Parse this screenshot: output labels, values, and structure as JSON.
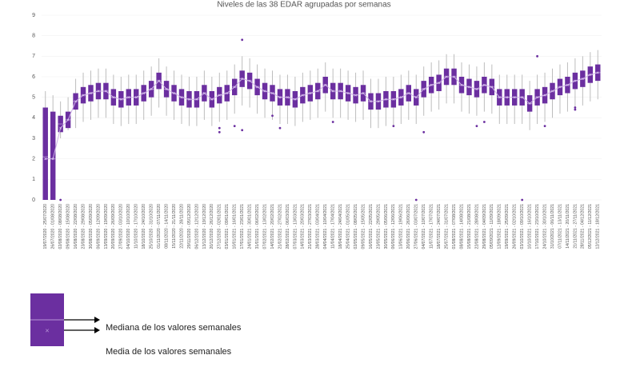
{
  "chart_data": {
    "type": "box",
    "title": "Niveles de las 38 EDAR agrupadas por semanas",
    "categories": [
      "19/07/2020 - 25/07/2020",
      "26/07/2020 - 01/08/2020",
      "02/08/2020 - 08/08/2020",
      "09/08/2020 - 15/08/2020",
      "16/08/2020 - 22/08/2020",
      "23/08/2020 - 29/08/2020",
      "30/08/2020 - 05/09/2020",
      "06/09/2020 - 12/09/2020",
      "13/09/2020 - 19/09/2020",
      "20/09/2020 - 26/09/2020",
      "27/09/2020 - 03/10/2020",
      "04/10/2020 - 10/10/2020",
      "11/10/2020 - 17/10/2020",
      "18/10/2020 - 24/10/2020",
      "25/10/2020 - 31/10/2020",
      "01/11/2020 - 07/11/2020",
      "08/11/2020 - 14/11/2020",
      "15/11/2020 - 21/11/2020",
      "22/11/2020 - 28/11/2020",
      "29/11/2020 - 05/12/2020",
      "06/12/2020 - 12/12/2020",
      "13/12/2020 - 19/12/2020",
      "20/12/2020 - 26/12/2020",
      "27/12/2020 - 02/01/2021",
      "03/01/2021 - 09/01/2021",
      "10/01/2021 - 16/01/2021",
      "17/01/2021 - 23/01/2021",
      "24/01/2021 - 30/01/2021",
      "31/01/2021 - 06/02/2021",
      "07/02/2021 - 13/02/2021",
      "14/02/2021 - 20/02/2021",
      "21/02/2021 - 27/02/2021",
      "28/02/2021 - 06/03/2021",
      "07/03/2021 - 13/03/2021",
      "14/03/2021 - 20/03/2021",
      "21/03/2021 - 27/03/2021",
      "28/03/2021 - 03/04/2021",
      "04/04/2021 - 10/04/2021",
      "11/04/2021 - 17/04/2021",
      "18/04/2021 - 24/04/2021",
      "25/04/2021 - 01/05/2021",
      "02/05/2021 - 08/05/2021",
      "09/05/2021 - 15/05/2021",
      "16/05/2021 - 22/05/2021",
      "23/05/2021 - 29/05/2021",
      "30/05/2021 - 05/06/2021",
      "06/06/2021 - 12/06/2021",
      "13/06/2021 - 19/06/2021",
      "20/06/2021 - 26/06/2021",
      "27/06/2021 - 03/07/2021",
      "04/07/2021 - 10/07/2021",
      "11/07/2021 - 17/07/2021",
      "18/07/2021 - 24/07/2021",
      "25/07/2021 - 31/07/2021",
      "01/08/2021 - 07/08/2021",
      "08/08/2021 - 14/08/2021",
      "15/08/2021 - 21/08/2021",
      "22/08/2021 - 28/08/2021",
      "29/08/2021 - 04/09/2021",
      "05/09/2021 - 11/09/2021",
      "12/09/2021 - 18/09/2021",
      "19/09/2021 - 25/09/2021",
      "26/09/2021 - 02/10/2021",
      "03/10/2021 - 09/10/2021",
      "10/10/2021 - 16/10/2021",
      "17/10/2021 - 23/10/2021",
      "24/10/2021 - 30/10/2021",
      "31/10/2021 - 06/11/2021",
      "07/11/2021 - 13/11/2021",
      "14/11/2021 - 20/11/2021",
      "21/11/2021 - 27/11/2021",
      "28/11/2021 - 04/12/2021",
      "05/12/2021 - 11/12/2021",
      "12/12/2021 - 18/12/2021"
    ],
    "min": [
      0,
      0,
      3.0,
      3.4,
      3.5,
      3.8,
      3.9,
      4.0,
      4.0,
      3.7,
      3.6,
      3.7,
      3.7,
      3.9,
      4.1,
      4.5,
      4.1,
      3.9,
      3.7,
      3.6,
      3.6,
      3.9,
      3.6,
      3.8,
      3.9,
      4.2,
      4.6,
      4.5,
      4.2,
      4.0,
      3.9,
      3.7,
      3.7,
      3.6,
      3.8,
      3.9,
      4.0,
      4.3,
      4.0,
      4.0,
      3.9,
      3.8,
      3.9,
      3.5,
      3.5,
      3.6,
      3.6,
      3.7,
      3.9,
      3.7,
      4.1,
      4.3,
      4.4,
      4.7,
      4.7,
      4.3,
      4.2,
      4.1,
      4.3,
      4.2,
      3.7,
      3.7,
      3.7,
      3.7,
      3.4,
      3.7,
      3.8,
      4.0,
      4.2,
      4.3,
      4.5,
      4.6,
      4.8,
      4.9
    ],
    "q1": [
      0,
      0,
      3.3,
      3.5,
      4.4,
      4.7,
      4.8,
      4.9,
      4.9,
      4.6,
      4.5,
      4.6,
      4.6,
      4.8,
      5.0,
      5.4,
      5.0,
      4.8,
      4.6,
      4.5,
      4.5,
      4.8,
      4.5,
      4.7,
      4.8,
      5.1,
      5.5,
      5.4,
      5.1,
      4.9,
      4.8,
      4.6,
      4.6,
      4.5,
      4.7,
      4.8,
      4.9,
      5.2,
      4.9,
      4.9,
      4.8,
      4.7,
      4.8,
      4.4,
      4.4,
      4.5,
      4.5,
      4.6,
      4.8,
      4.6,
      5.0,
      5.2,
      5.3,
      5.6,
      5.6,
      5.2,
      5.1,
      5.0,
      5.2,
      5.1,
      4.6,
      4.6,
      4.6,
      4.6,
      4.3,
      4.6,
      4.7,
      4.9,
      5.1,
      5.2,
      5.4,
      5.5,
      5.7,
      5.8
    ],
    "median": [
      2.1,
      2.0,
      3.7,
      3.9,
      4.8,
      5.1,
      5.2,
      5.3,
      5.3,
      5.0,
      4.9,
      5.0,
      5.0,
      5.2,
      5.4,
      5.8,
      5.4,
      5.2,
      5.0,
      4.9,
      4.9,
      5.2,
      4.9,
      5.1,
      5.2,
      5.5,
      5.9,
      5.8,
      5.5,
      5.3,
      5.2,
      5.0,
      5.0,
      4.9,
      5.1,
      5.2,
      5.3,
      5.6,
      5.3,
      5.3,
      5.2,
      5.1,
      5.2,
      4.8,
      4.8,
      4.9,
      4.9,
      5.0,
      5.2,
      5.0,
      5.4,
      5.6,
      5.7,
      6.0,
      6.0,
      5.6,
      5.5,
      5.4,
      5.6,
      5.5,
      5.0,
      5.0,
      5.0,
      5.0,
      4.7,
      5.0,
      5.1,
      5.3,
      5.5,
      5.6,
      5.8,
      5.9,
      6.1,
      6.2
    ],
    "q3": [
      4.5,
      4.3,
      4.1,
      4.3,
      5.2,
      5.5,
      5.6,
      5.7,
      5.7,
      5.4,
      5.3,
      5.4,
      5.4,
      5.6,
      5.8,
      6.2,
      5.8,
      5.6,
      5.4,
      5.3,
      5.3,
      5.6,
      5.3,
      5.5,
      5.6,
      5.9,
      6.3,
      6.2,
      5.9,
      5.7,
      5.6,
      5.4,
      5.4,
      5.3,
      5.5,
      5.6,
      5.7,
      6.0,
      5.7,
      5.7,
      5.6,
      5.5,
      5.6,
      5.2,
      5.2,
      5.3,
      5.3,
      5.4,
      5.6,
      5.4,
      5.8,
      6.0,
      6.1,
      6.4,
      6.4,
      6.0,
      5.9,
      5.8,
      6.0,
      5.9,
      5.4,
      5.4,
      5.4,
      5.4,
      5.1,
      5.4,
      5.5,
      5.7,
      5.9,
      6.0,
      6.2,
      6.3,
      6.5,
      6.6
    ],
    "max": [
      5.3,
      5.1,
      4.8,
      5.0,
      5.9,
      6.2,
      6.3,
      6.4,
      6.4,
      6.1,
      6.0,
      6.1,
      6.1,
      6.3,
      6.5,
      6.9,
      6.5,
      6.3,
      6.1,
      6.0,
      6.0,
      6.3,
      6.0,
      6.2,
      6.3,
      6.6,
      7.0,
      6.9,
      6.6,
      6.4,
      6.3,
      6.1,
      6.1,
      6.0,
      6.2,
      6.3,
      6.4,
      6.7,
      6.4,
      6.4,
      6.3,
      6.2,
      6.3,
      5.9,
      5.9,
      6.0,
      6.0,
      6.1,
      6.3,
      6.1,
      6.5,
      6.7,
      6.8,
      7.1,
      7.1,
      6.7,
      6.6,
      6.5,
      6.7,
      6.6,
      6.1,
      6.1,
      6.1,
      6.1,
      5.8,
      6.1,
      6.2,
      6.4,
      6.6,
      6.7,
      6.9,
      7.0,
      7.2,
      7.3
    ],
    "mean": [
      2.0,
      2.0,
      3.5,
      3.9,
      4.8,
      5.1,
      5.2,
      5.3,
      5.3,
      5.0,
      4.9,
      5.0,
      5.0,
      5.2,
      5.4,
      5.8,
      5.4,
      5.2,
      5.0,
      4.9,
      4.9,
      5.2,
      4.9,
      5.1,
      5.2,
      5.5,
      5.9,
      5.8,
      5.5,
      5.3,
      5.2,
      5.0,
      5.0,
      4.9,
      5.1,
      5.2,
      5.3,
      5.6,
      5.3,
      5.3,
      5.2,
      5.1,
      5.2,
      4.8,
      4.8,
      4.9,
      4.9,
      5.0,
      5.2,
      5.0,
      5.4,
      5.6,
      5.7,
      6.0,
      6.0,
      5.6,
      5.5,
      5.4,
      5.6,
      5.5,
      5.0,
      5.0,
      5.0,
      5.0,
      4.7,
      5.0,
      5.1,
      5.3,
      5.5,
      5.6,
      5.8,
      5.9,
      6.1,
      6.2
    ],
    "outliers": [
      [],
      [],
      [
        0
      ],
      [],
      [],
      [],
      [],
      [],
      [],
      [],
      [],
      [],
      [],
      [],
      [],
      [],
      [],
      [],
      [],
      [],
      [],
      [],
      [],
      [
        3.3,
        3.5
      ],
      [],
      [
        3.6
      ],
      [
        3.4,
        7.8
      ],
      [],
      [],
      [],
      [
        4.1
      ],
      [
        3.5
      ],
      [],
      [],
      [],
      [],
      [],
      [],
      [
        3.8
      ],
      [],
      [],
      [],
      [],
      [],
      [],
      [],
      [
        3.6
      ],
      [],
      [],
      [
        0
      ],
      [
        3.3
      ],
      [],
      [],
      [],
      [],
      [],
      [],
      [
        3.6
      ],
      [
        3.8
      ],
      [],
      [],
      [],
      [],
      [
        0
      ],
      [],
      [
        7.0
      ],
      [
        3.6
      ],
      [],
      [],
      [],
      [
        4.5,
        4.4
      ],
      [],
      [],
      []
    ],
    "ylim": [
      0,
      9
    ],
    "yticks": [
      0,
      1,
      2,
      3,
      4,
      5,
      6,
      7,
      8,
      9
    ],
    "color": "#6b2fa0",
    "whisker_color": "#bdbdbd",
    "mean_line_color": "#cdb0e6",
    "grid": true,
    "annotations": [
      "Mediana de los valores semanales",
      "Media de los valores semanales"
    ]
  }
}
